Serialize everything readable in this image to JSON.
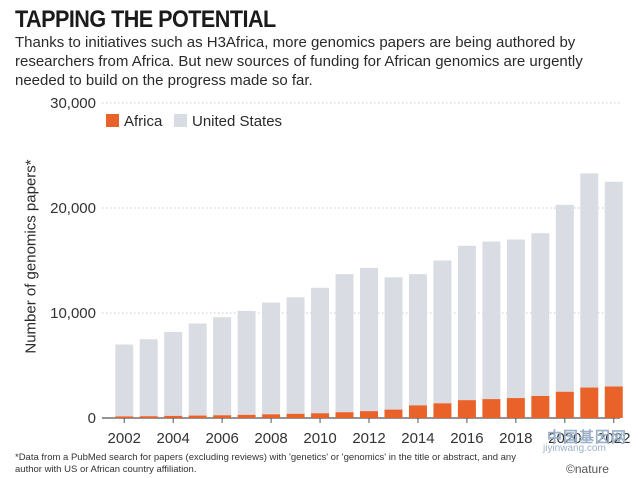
{
  "title": "TAPPING THE POTENTIAL",
  "subtitle": "Thanks to initiatives such as H3Africa, more genomics papers are being authored by researchers from Africa. But new sources of funding for African genomics are urgently needed to build on the progress made so far.",
  "footnote": "*Data from a PubMed search for papers (excluding reviews) with 'genetics' or 'genomics' in the title or abstract, and any author with US or African country affiliation.",
  "credit": "©nature",
  "watermark": {
    "cn": "中国基因网",
    "url": "jiyinwang.com"
  },
  "colors": {
    "africa": "#e8622a",
    "united_states": "#d9dde3",
    "grid": "#c9c9c9",
    "axis": "#555555"
  },
  "chart_data": {
    "type": "bar",
    "stacked": true,
    "ylabel": "Number of genomics papers*",
    "ylim": [
      0,
      30000
    ],
    "yticks": [
      0,
      10000,
      20000,
      30000
    ],
    "ytick_labels": [
      "0",
      "10,000",
      "20,000",
      "30,000"
    ],
    "legend_position": "top-left",
    "grid": "horizontal dotted",
    "categories": [
      "2002",
      "2003",
      "2004",
      "2005",
      "2006",
      "2007",
      "2008",
      "2009",
      "2010",
      "2011",
      "2012",
      "2013",
      "2014",
      "2015",
      "2016",
      "2017",
      "2018",
      "2019",
      "2020",
      "2021",
      "2022"
    ],
    "xtick_labels": [
      "2002",
      "",
      "2004",
      "",
      "2006",
      "",
      "2008",
      "",
      "2010",
      "",
      "2012",
      "",
      "2014",
      "",
      "2016",
      "",
      "2018",
      "",
      "2020",
      "",
      "2022"
    ],
    "series": [
      {
        "name": "Africa",
        "values": [
          150,
          170,
          200,
          230,
          260,
          300,
          350,
          400,
          450,
          550,
          650,
          800,
          1200,
          1400,
          1700,
          1800,
          1900,
          2100,
          2500,
          2900,
          3000
        ]
      },
      {
        "name": "United States",
        "values": [
          6850,
          7330,
          8000,
          8770,
          9340,
          9900,
          10650,
          11100,
          11950,
          13150,
          13650,
          12600,
          12500,
          13600,
          14700,
          15000,
          15100,
          15500,
          17800,
          20400,
          19500
        ]
      }
    ]
  }
}
